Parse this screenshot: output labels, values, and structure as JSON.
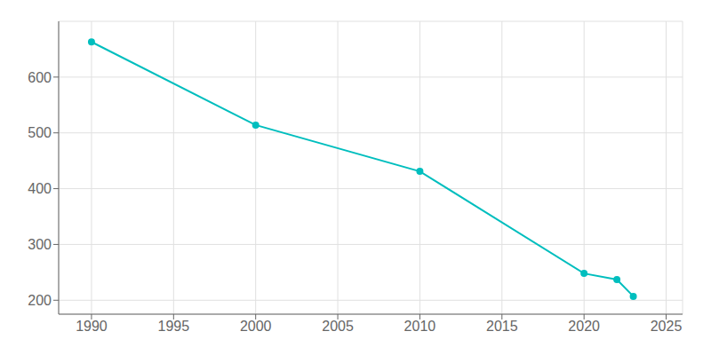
{
  "chart_data": {
    "type": "line",
    "x": [
      1990,
      2000,
      2010,
      2020,
      2022,
      2023
    ],
    "values": [
      663,
      514,
      431,
      248,
      237,
      207
    ],
    "color": "#00BEBE",
    "marker": "circle",
    "xlim": [
      1988,
      2026
    ],
    "ylim": [
      175,
      700
    ],
    "xticks": [
      1990,
      1995,
      2000,
      2005,
      2010,
      2015,
      2020,
      2025
    ],
    "yticks": [
      200,
      300,
      400,
      500,
      600
    ],
    "grid": true
  }
}
